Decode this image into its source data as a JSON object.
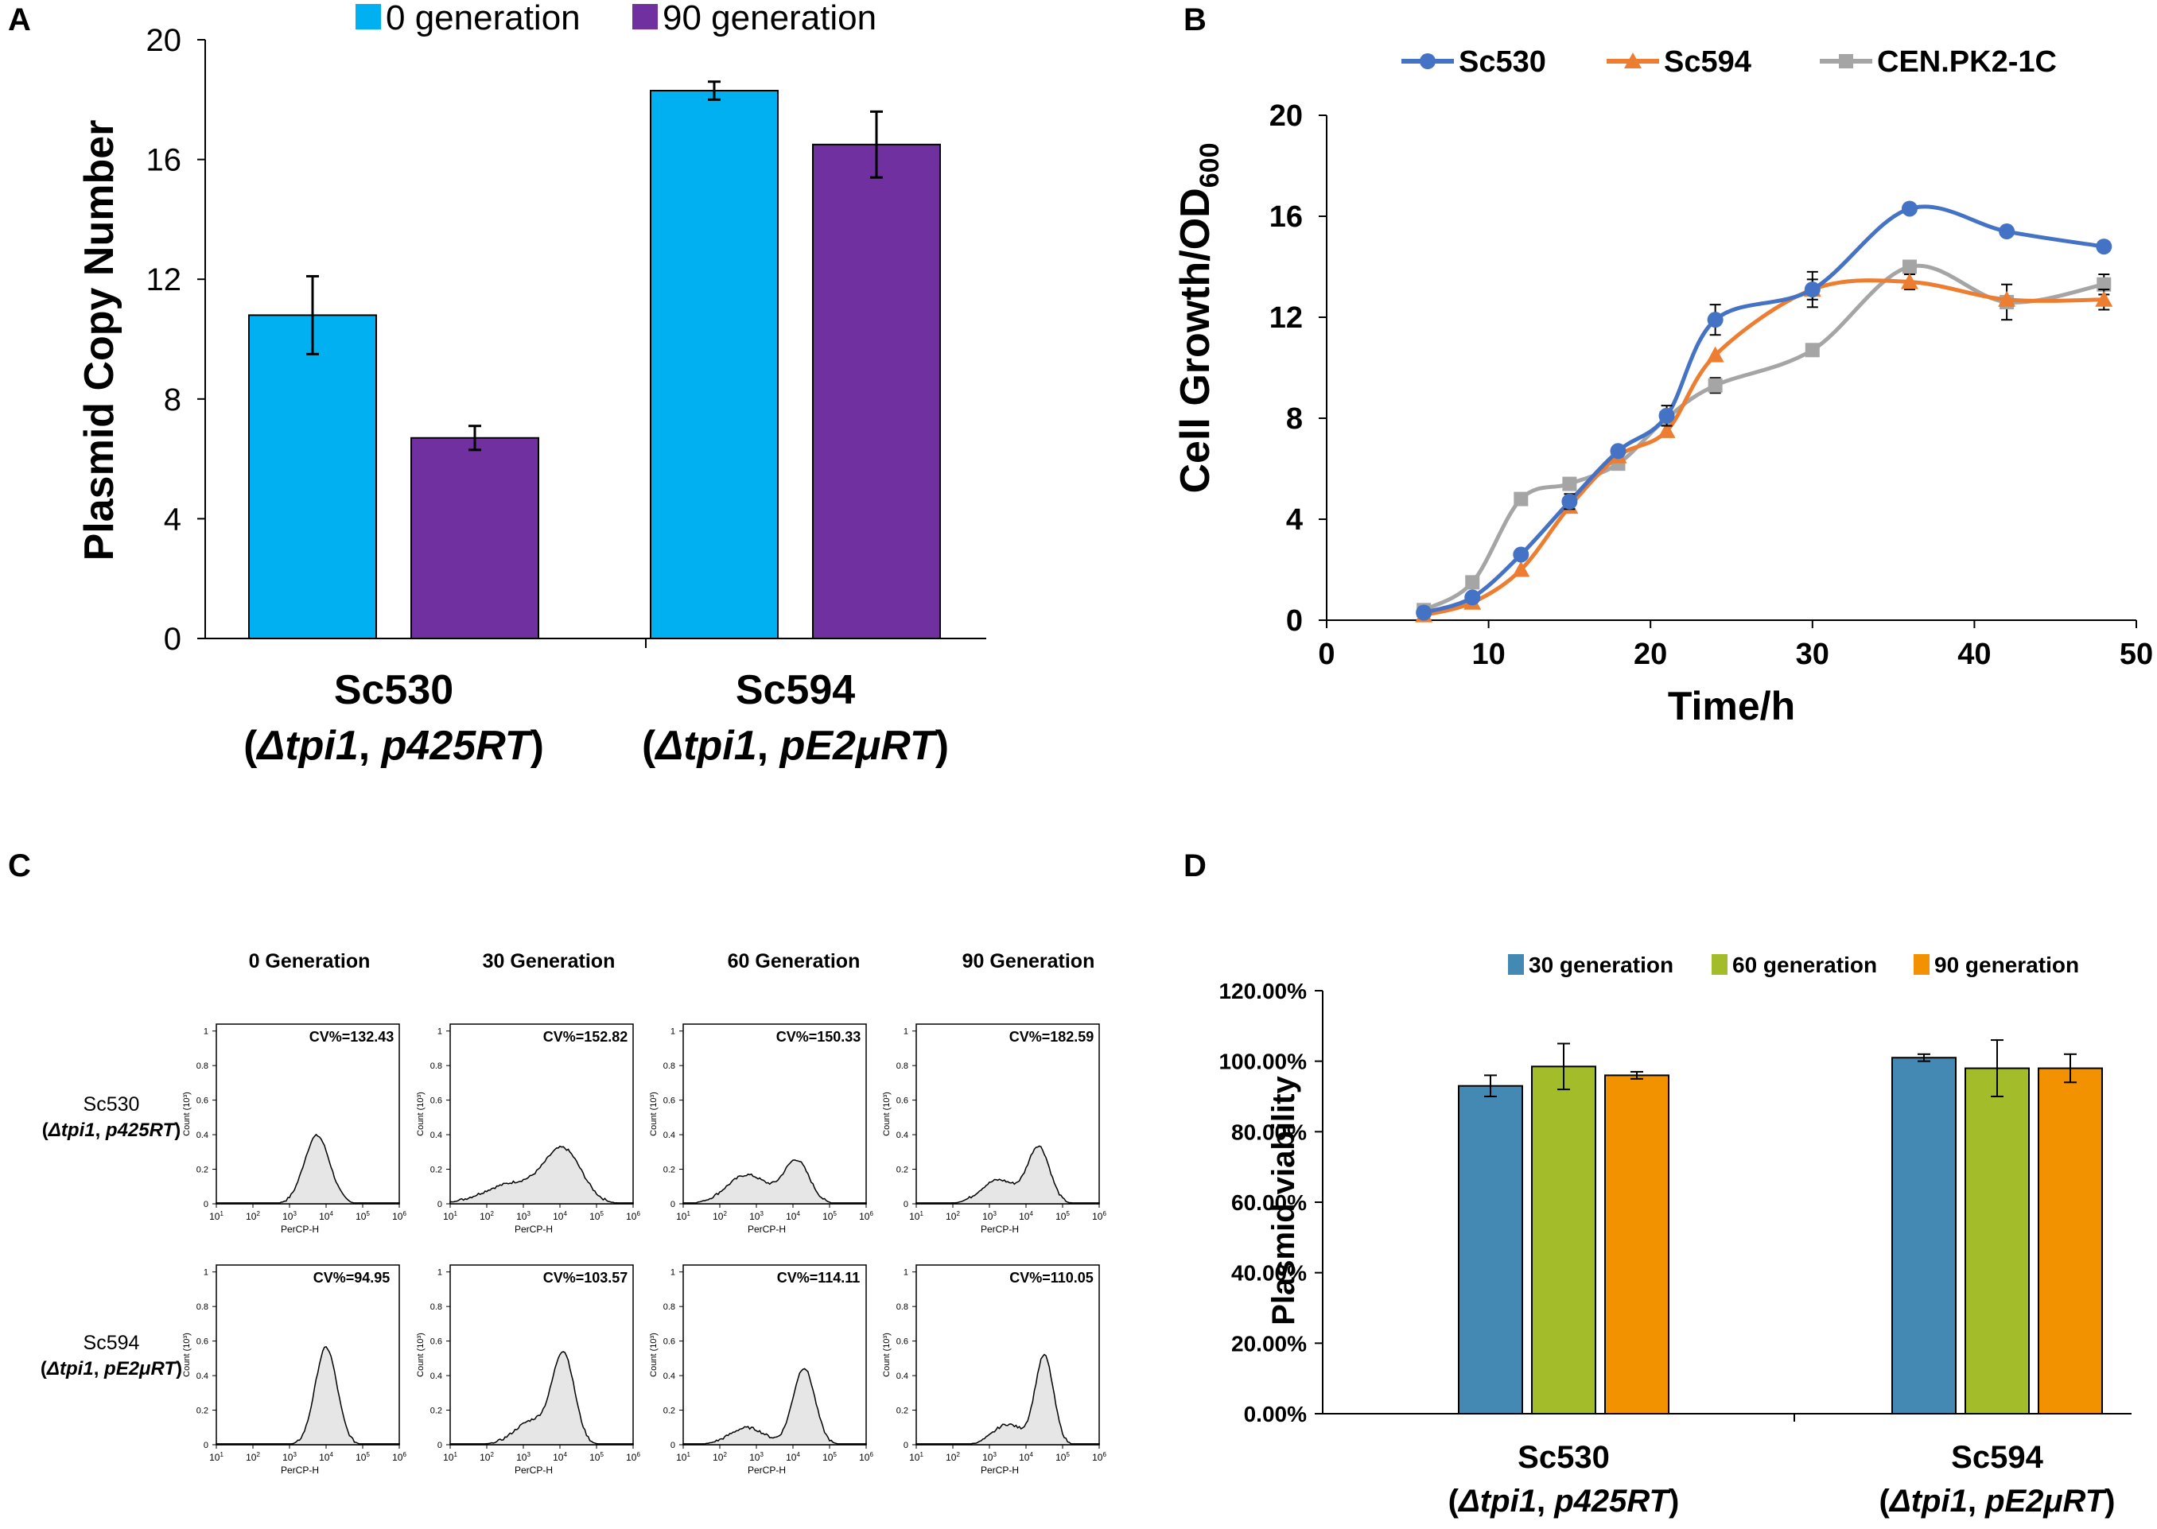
{
  "chart_data": [
    {
      "panel": "A",
      "type": "bar",
      "ylabel": "Plasmid Copy Number",
      "ylim": [
        0,
        20
      ],
      "yticks": [
        0,
        4,
        8,
        12,
        16,
        20
      ],
      "legend_position": "top",
      "groups": [
        {
          "name": "Sc530",
          "detail": [
            "(",
            "Δtpi1",
            ", ",
            "p425RT",
            ")"
          ]
        },
        {
          "name": "Sc594",
          "detail": [
            "(",
            "Δtpi1",
            ", ",
            "pE2μRT",
            ")"
          ]
        }
      ],
      "series": [
        {
          "name": "0 generation",
          "color": "#00B0F0",
          "values": [
            10.8,
            18.3
          ],
          "errors": [
            1.3,
            0.3
          ]
        },
        {
          "name": "90 generation",
          "color": "#7030A0",
          "values": [
            6.7,
            16.5
          ],
          "errors": [
            0.4,
            1.1
          ]
        }
      ]
    },
    {
      "panel": "B",
      "type": "line",
      "xlabel": "Time/h",
      "ylabel": "Cell Growth/OD",
      "ylabel_sub": "600",
      "xlim": [
        0,
        50
      ],
      "ylim": [
        0,
        20
      ],
      "xticks": [
        0,
        10,
        20,
        30,
        40,
        50
      ],
      "yticks": [
        0,
        4,
        8,
        12,
        16,
        20
      ],
      "legend_position": "top",
      "series": [
        {
          "name": "Sc530",
          "color": "#4472C4",
          "marker": "circle",
          "x": [
            6,
            9,
            12,
            15,
            18,
            21,
            24,
            30,
            36,
            42,
            48
          ],
          "y": [
            0.3,
            0.9,
            2.6,
            4.7,
            6.7,
            8.1,
            11.9,
            13.1,
            16.3,
            15.4,
            14.8
          ],
          "err": [
            0,
            0,
            0,
            0.3,
            0,
            0.4,
            0.6,
            0.7,
            0,
            0,
            0
          ]
        },
        {
          "name": "Sc594",
          "color": "#ED7D31",
          "marker": "triangle",
          "x": [
            6,
            9,
            12,
            15,
            18,
            21,
            24,
            30,
            36,
            42,
            48
          ],
          "y": [
            0.2,
            0.7,
            2.0,
            4.5,
            6.5,
            7.5,
            10.5,
            13.1,
            13.4,
            12.7,
            12.7
          ],
          "err": [
            0,
            0,
            0,
            0,
            0,
            0,
            0,
            0.4,
            0.3,
            0,
            0.4
          ]
        },
        {
          "name": "CEN.PK2-1C",
          "color": "#A5A5A5",
          "marker": "square",
          "x": [
            6,
            9,
            12,
            15,
            18,
            21,
            24,
            30,
            36,
            42,
            48
          ],
          "y": [
            0.4,
            1.5,
            4.8,
            5.4,
            6.2,
            8.0,
            9.3,
            10.7,
            14.0,
            12.6,
            13.3
          ],
          "err": [
            0,
            0,
            0,
            0,
            0,
            0,
            0.3,
            0,
            0,
            0.7,
            0.4
          ]
        }
      ]
    },
    {
      "panel": "C",
      "type": "histogram-grid",
      "columns": [
        "0 Generation",
        "30 Generation",
        "60 Generation",
        "90 Generation"
      ],
      "rows": [
        {
          "name": "Sc530",
          "detail": [
            "(",
            "Δtpi1",
            ", ",
            "p425RT",
            ")"
          ],
          "cv": [
            "CV%=132.43",
            "CV%=152.82",
            "CV%=150.33",
            "CV%=182.59"
          ]
        },
        {
          "name": "Sc594",
          "detail": [
            "(",
            "Δtpi1",
            ", ",
            "pE2μRT",
            ")"
          ],
          "cv": [
            "CV%=94.95",
            "CV%=103.57",
            "CV%=114.11",
            "CV%=110.05"
          ]
        }
      ],
      "xlabel": "PerCP-H",
      "ylabel": "Count (10³)",
      "xtick_base": "10",
      "xtick_exponents": [
        "1",
        "2",
        "3",
        "4",
        "5",
        "6"
      ],
      "yticks": [
        "0",
        "0.2",
        "0.4",
        "0.6",
        "0.8",
        "1"
      ]
    },
    {
      "panel": "D",
      "type": "bar",
      "ylabel": "Plasmid viability",
      "ylim": [
        0,
        1.2
      ],
      "ytick_labels": [
        "0.00%",
        "20.00%",
        "40.00%",
        "60.00%",
        "80.00%",
        "100.00%",
        "120.00%"
      ],
      "legend_position": "top",
      "groups": [
        {
          "name": "Sc530",
          "detail": [
            "(",
            "Δtpi1",
            ", ",
            "p425RT",
            ")"
          ]
        },
        {
          "name": "Sc594",
          "detail": [
            "(",
            "Δtpi1",
            ", ",
            "pE2μRT",
            ")"
          ]
        }
      ],
      "series": [
        {
          "name": "30 generation",
          "color": "#4389B4",
          "values": [
            0.93,
            1.01
          ],
          "errors": [
            0.03,
            0.01
          ]
        },
        {
          "name": "60 generation",
          "color": "#A3BC29",
          "values": [
            0.985,
            0.98
          ],
          "errors": [
            0.065,
            0.08
          ]
        },
        {
          "name": "90 generation",
          "color": "#F39200",
          "values": [
            0.96,
            0.98
          ],
          "errors": [
            0.01,
            0.04
          ]
        }
      ]
    }
  ],
  "panel_labels": [
    "A",
    "B",
    "C",
    "D"
  ]
}
